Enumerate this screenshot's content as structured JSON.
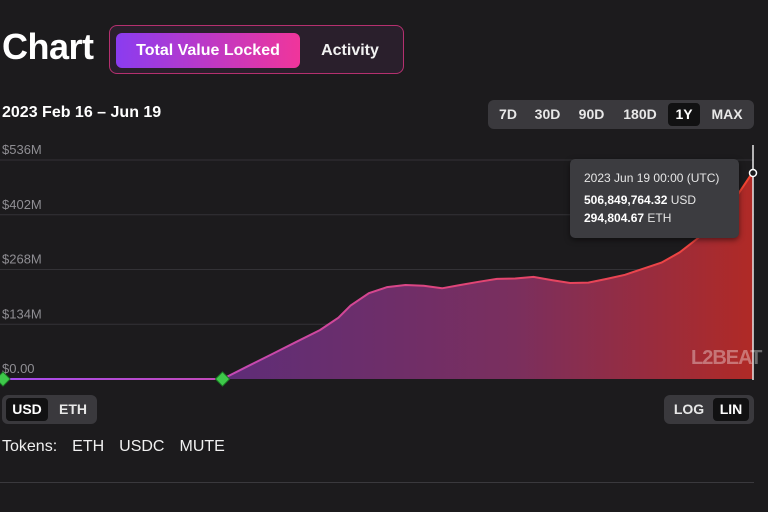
{
  "header": {
    "title": "Chart",
    "tabs": [
      {
        "label": "Total Value Locked",
        "active": true
      },
      {
        "label": "Activity",
        "active": false
      }
    ]
  },
  "date_range": "2023 Feb 16 – Jun 19",
  "ranges": [
    {
      "label": "7D",
      "active": false
    },
    {
      "label": "30D",
      "active": false
    },
    {
      "label": "90D",
      "active": false
    },
    {
      "label": "180D",
      "active": false
    },
    {
      "label": "1Y",
      "active": true
    },
    {
      "label": "MAX",
      "active": false
    }
  ],
  "tooltip": {
    "date": "2023 Jun 19 00:00 (UTC)",
    "usd_value": "506,849,764.32",
    "usd_unit": "USD",
    "eth_value": "294,804.67",
    "eth_unit": "ETH"
  },
  "watermark": "L2BEAT",
  "currency": {
    "options": [
      {
        "label": "USD",
        "active": true
      },
      {
        "label": "ETH",
        "active": false
      }
    ]
  },
  "scale": {
    "options": [
      {
        "label": "LOG",
        "active": false
      },
      {
        "label": "LIN",
        "active": true
      }
    ]
  },
  "tokens": {
    "label": "Tokens:",
    "items": [
      "ETH",
      "USDC",
      "MUTE"
    ]
  },
  "colors": {
    "gradient_start": "#8a3cf0",
    "gradient_end": "#f0359b",
    "area_left": "#6b2f7a",
    "area_right": "#b02a26"
  },
  "chart_data": {
    "type": "area",
    "y_tick_labels": [
      "$0.00",
      "$134M",
      "$268M",
      "$402M",
      "$536M"
    ],
    "y_ticks": [
      0,
      134,
      268,
      402,
      536
    ],
    "ylim": [
      0,
      536
    ],
    "y_unit": "USD millions",
    "x_start": "2023-02-16",
    "x_end": "2023-06-19",
    "grid": true,
    "series": [
      {
        "points": [
          [
            "2023-02-16",
            0
          ],
          [
            "2023-03-01",
            0
          ],
          [
            "2023-03-14",
            0
          ],
          [
            "2023-03-24",
            0
          ],
          [
            "2023-03-28",
            30
          ],
          [
            "2023-04-01",
            60
          ],
          [
            "2023-04-05",
            90
          ],
          [
            "2023-04-09",
            120
          ],
          [
            "2023-04-12",
            150
          ],
          [
            "2023-04-14",
            180
          ],
          [
            "2023-04-17",
            210
          ],
          [
            "2023-04-20",
            225
          ],
          [
            "2023-04-23",
            230
          ],
          [
            "2023-04-26",
            228
          ],
          [
            "2023-04-29",
            222
          ],
          [
            "2023-05-02",
            230
          ],
          [
            "2023-05-05",
            238
          ],
          [
            "2023-05-08",
            245
          ],
          [
            "2023-05-11",
            246
          ],
          [
            "2023-05-14",
            250
          ],
          [
            "2023-05-17",
            242
          ],
          [
            "2023-05-20",
            235
          ],
          [
            "2023-05-23",
            236
          ],
          [
            "2023-05-26",
            245
          ],
          [
            "2023-05-29",
            255
          ],
          [
            "2023-06-01",
            270
          ],
          [
            "2023-06-04",
            285
          ],
          [
            "2023-06-07",
            310
          ],
          [
            "2023-06-10",
            345
          ],
          [
            "2023-06-13",
            385
          ],
          [
            "2023-06-16",
            440
          ],
          [
            "2023-06-19",
            507
          ]
        ]
      }
    ]
  }
}
